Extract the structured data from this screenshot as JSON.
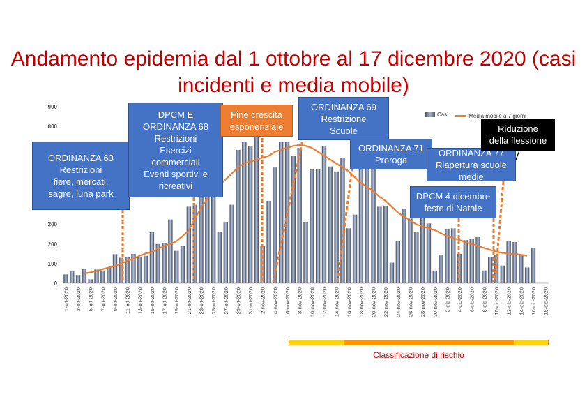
{
  "title": "Andamento epidemia dal 1 ottobre al 17 dicembre 2020 (casi incidenti e media mobile)",
  "legend": {
    "bars_label": "Casi",
    "line_label": "Media mobile a 7 giorni"
  },
  "colors": {
    "title": "#c00000",
    "bars": "#5a6a86",
    "moving_average": "#ed7d31",
    "box": "#4472c4",
    "box_orange": "#ed7d31",
    "box_black": "#000000",
    "vline": "#ed7d31",
    "risk_yellow": "#ffd400",
    "risk_orange": "#ff9500"
  },
  "annotations": [
    {
      "id": "ordinanza-63",
      "text": "ORDINANZA 63\nRestrizioni\nfiere, mercati,\nsagre, luna park",
      "style": "blue"
    },
    {
      "id": "dpcm-ordinanza-68",
      "text": "DPCM E\nORDINANZA 68\nRestrizioni\nEsercizi\ncommerciali\nEventi sportivi e\nricreativi",
      "style": "blue"
    },
    {
      "id": "fine-crescita",
      "text": "Fine crescita\nesponenziale",
      "style": "orange"
    },
    {
      "id": "ordinanza-69",
      "text": "ORDINANZA 69\nRestrizione\nScuole",
      "style": "blue"
    },
    {
      "id": "ordinanza-71",
      "text": "ORDINANZA 71\nProroga",
      "style": "blue"
    },
    {
      "id": "ordinanza-77",
      "text": "ORDINANZA 77\nRiapertura scuole\nmedie",
      "style": "blue"
    },
    {
      "id": "dpcm-4-dicembre",
      "text": "DPCM 4 dicembre\nfeste di Natale",
      "style": "blue"
    },
    {
      "id": "riduzione-flessione",
      "text": "Riduzione\ndella flessione",
      "style": "black"
    }
  ],
  "risk_classification_label": "Classificazione di rischio",
  "chart_data": {
    "type": "bar",
    "title": "Andamento epidemia dal 1 ottobre al 17 dicembre 2020 (casi incidenti e media mobile)",
    "xlabel": "",
    "ylabel": "",
    "ylim": [
      0,
      900
    ],
    "y_ticks": [
      0,
      100,
      200,
      300,
      800,
      900
    ],
    "grid": false,
    "legend_position": "top-right",
    "categories": [
      "1-ott-2020",
      "2-ott-2020",
      "3-ott-2020",
      "4-ott-2020",
      "5-ott-2020",
      "6-ott-2020",
      "7-ott-2020",
      "8-ott-2020",
      "9-ott-2020",
      "10-ott-2020",
      "11-ott-2020",
      "12-ott-2020",
      "13-ott-2020",
      "14-ott-2020",
      "15-ott-2020",
      "16-ott-2020",
      "17-ott-2020",
      "18-ott-2020",
      "19-ott-2020",
      "20-ott-2020",
      "21-ott-2020",
      "22-ott-2020",
      "23-ott-2020",
      "24-ott-2020",
      "25-ott-2020",
      "26-ott-2020",
      "27-ott-2020",
      "28-ott-2020",
      "29-ott-2020",
      "30-ott-2020",
      "31-ott-2020",
      "1-nov-2020",
      "2-nov-2020",
      "3-nov-2020",
      "4-nov-2020",
      "5-nov-2020",
      "6-nov-2020",
      "7-nov-2020",
      "8-nov-2020",
      "9-nov-2020",
      "10-nov-2020",
      "11-nov-2020",
      "12-nov-2020",
      "13-nov-2020",
      "14-nov-2020",
      "15-nov-2020",
      "16-nov-2020",
      "17-nov-2020",
      "18-nov-2020",
      "19-nov-2020",
      "20-nov-2020",
      "21-nov-2020",
      "22-nov-2020",
      "23-nov-2020",
      "24-nov-2020",
      "25-nov-2020",
      "26-nov-2020",
      "27-nov-2020",
      "28-nov-2020",
      "29-nov-2020",
      "30-nov-2020",
      "1-dic-2020",
      "2-dic-2020",
      "3-dic-2020",
      "4-dic-2020",
      "5-dic-2020",
      "6-dic-2020",
      "7-dic-2020",
      "8-dic-2020",
      "9-dic-2020",
      "10-dic-2020",
      "11-dic-2020",
      "12-dic-2020",
      "13-dic-2020",
      "14-dic-2020",
      "15-dic-2020",
      "16-dic-2020",
      "17-dic-2020",
      "18-dic-2020"
    ],
    "tick_labels": [
      "1-ott-2020",
      "3-ott-2020",
      "5-ott-2020",
      "7-ott-2020",
      "9-ott-2020",
      "11-ott-2020",
      "13-ott-2020",
      "15-ott-2020",
      "17-ott-2020",
      "19-ott-2020",
      "21-ott-2020",
      "23-ott-2020",
      "25-ott-2020",
      "27-ott-2020",
      "29-ott-2020",
      "31-ott-2020",
      "2-nov-2020",
      "4-nov-2020",
      "6-nov-2020",
      "8-nov-2020",
      "10-nov-2020",
      "12-nov-2020",
      "14-nov-2020",
      "16-nov-2020",
      "18-nov-2020",
      "20-nov-2020",
      "22-nov-2020",
      "24-nov-2020",
      "26-nov-2020",
      "28-nov-2020",
      "30-nov-2020",
      "2-dic-2020",
      "4-dic-2020",
      "6-dic-2020",
      "8-dic-2020",
      "10-dic-2020",
      "12-dic-2020",
      "14-dic-2020",
      "16-dic-2020",
      "18-dic-2020"
    ],
    "series": [
      {
        "name": "Casi",
        "type": "bar",
        "values": [
          45,
          60,
          42,
          72,
          20,
          70,
          65,
          80,
          148,
          130,
          135,
          150,
          135,
          140,
          260,
          200,
          205,
          325,
          165,
          190,
          390,
          400,
          520,
          620,
          450,
          260,
          310,
          400,
          680,
          720,
          700,
          760,
          190,
          420,
          590,
          720,
          720,
          650,
          690,
          310,
          580,
          580,
          700,
          595,
          570,
          640,
          280,
          350,
          600,
          610,
          600,
          390,
          395,
          105,
          215,
          380,
          330,
          260,
          360,
          305,
          65,
          145,
          275,
          280,
          150,
          220,
          225,
          235,
          65,
          135,
          145,
          90,
          215,
          210,
          145,
          80,
          180,
          null,
          null
        ]
      },
      {
        "name": "Media mobile a 7 giorni",
        "type": "line",
        "values": [
          null,
          null,
          null,
          50,
          55,
          62,
          72,
          80,
          88,
          100,
          115,
          125,
          140,
          152,
          160,
          175,
          190,
          200,
          215,
          240,
          270,
          330,
          385,
          430,
          470,
          500,
          530,
          560,
          590,
          610,
          620,
          630,
          640,
          650,
          670,
          680,
          690,
          700,
          705,
          700,
          690,
          670,
          650,
          630,
          610,
          590,
          570,
          540,
          510,
          490,
          470,
          440,
          420,
          390,
          360,
          340,
          320,
          300,
          290,
          280,
          270,
          255,
          240,
          230,
          220,
          210,
          200,
          190,
          180,
          170,
          160,
          155,
          150,
          150,
          145,
          140,
          null,
          null,
          null
        ]
      }
    ]
  }
}
